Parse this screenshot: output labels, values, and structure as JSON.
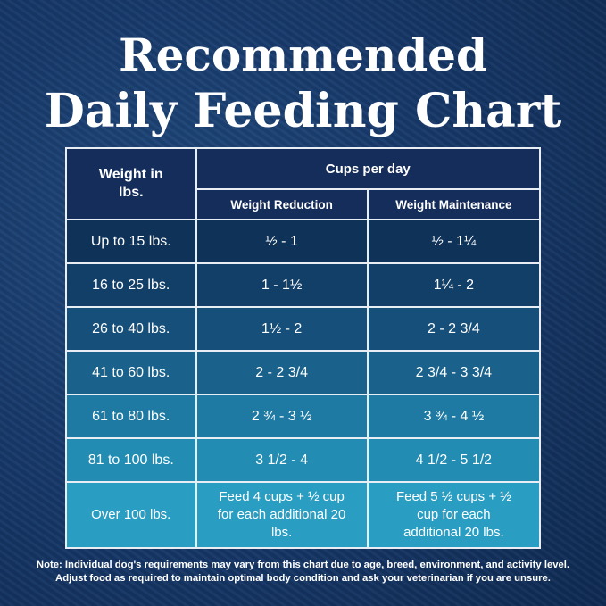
{
  "title_line1": "Recommended",
  "title_line2": "Daily Feeding Chart",
  "chart_data": {
    "type": "table",
    "headers": {
      "weight": "Weight in lbs.",
      "cups_group": "Cups per day",
      "reduction": "Weight Reduction",
      "maintenance": "Weight Maintenance"
    },
    "rows": [
      {
        "weight": "Up to 15 lbs.",
        "reduction": "½ - 1",
        "maintenance": "½ - 1¼",
        "color": "#0f3259"
      },
      {
        "weight": "16 to 25 lbs.",
        "reduction": "1 - 1½",
        "maintenance": "1¼ - 2",
        "color": "#123f68"
      },
      {
        "weight": "26 to 40 lbs.",
        "reduction": "1½ - 2",
        "maintenance": "2 - 2 3/4",
        "color": "#164f79"
      },
      {
        "weight": "41 to 60 lbs.",
        "reduction": "2 - 2 3/4",
        "maintenance": "2 3/4 - 3 3/4",
        "color": "#1a628c"
      },
      {
        "weight": "61 to 80 lbs.",
        "reduction": "2 ¾ - 3 ½",
        "maintenance": "3 ¾ - 4 ½",
        "color": "#1e7aa2"
      },
      {
        "weight": "81 to 100 lbs.",
        "reduction": "3 1/2 - 4",
        "maintenance": "4 1/2 - 5 1/2",
        "color": "#228cb3"
      },
      {
        "weight": "Over 100 lbs.",
        "reduction": "Feed 4 cups + ½ cup for each additional 20 lbs.",
        "maintenance": "Feed 5 ½ cups + ½ cup for each additional 20 lbs.",
        "color": "#2a9dc2"
      }
    ]
  },
  "note_line1": "Note: Individual dog's requirements may vary from this chart due to age, breed, environment, and activity level.",
  "note_line2": "Adjust food as required to maintain optimal body condition and ask your veterinarian if you are unsure."
}
